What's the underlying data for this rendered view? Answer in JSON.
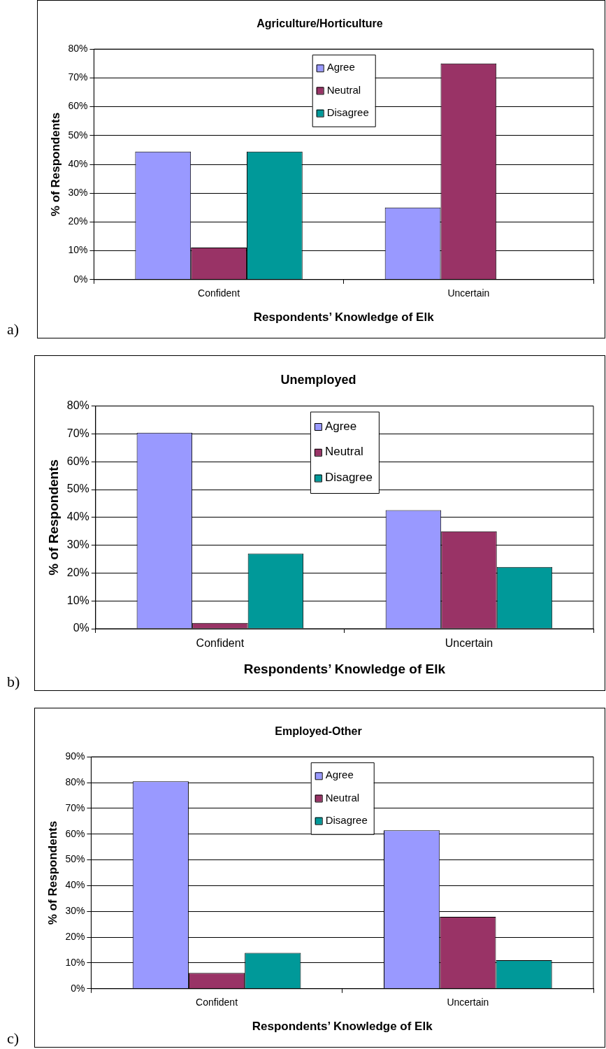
{
  "chart_data": [
    {
      "type": "bar",
      "title": "Agriculture/Horticulture",
      "xlabel": "Respondents’ Knowledge of Elk",
      "ylabel": "% of Respondents",
      "annotations": [
        "a)"
      ],
      "categories": [
        "Confident",
        "Uncertain"
      ],
      "series": [
        {
          "name": "Agree",
          "color": "#9999ff",
          "values": [
            44.4,
            25
          ]
        },
        {
          "name": "Neutral",
          "color": "#993366",
          "values": [
            11.1,
            75
          ]
        },
        {
          "name": "Disagree",
          "color": "#009999",
          "values": [
            44.4,
            0
          ]
        }
      ],
      "ylim": [
        0,
        80
      ],
      "yticks": [
        {
          "value": 0,
          "label": "0%"
        },
        {
          "value": 10,
          "label": "10%"
        },
        {
          "value": 20,
          "label": "20%"
        },
        {
          "value": 30,
          "label": "30%"
        },
        {
          "value": 40,
          "label": "40%"
        },
        {
          "value": 50,
          "label": "50%"
        },
        {
          "value": 60,
          "label": "60%"
        },
        {
          "value": 70,
          "label": "70%"
        },
        {
          "value": 80,
          "label": "80%"
        }
      ],
      "grid": "y",
      "legend": "top"
    },
    {
      "type": "bar",
      "title": "Unemployed",
      "xlabel": "Respondents’ Knowledge of Elk",
      "ylabel": "% of Respondents",
      "annotations": [
        "b)"
      ],
      "categories": [
        "Confident",
        "Uncertain"
      ],
      "series": [
        {
          "name": "Agree",
          "color": "#9999ff",
          "values": [
            70.4,
            42.6
          ]
        },
        {
          "name": "Neutral",
          "color": "#993366",
          "values": [
            2.1,
            35
          ]
        },
        {
          "name": "Disagree",
          "color": "#009999",
          "values": [
            27,
            22.2
          ]
        }
      ],
      "ylim": [
        0,
        80
      ],
      "yticks": [
        {
          "value": 0,
          "label": "0%"
        },
        {
          "value": 10,
          "label": "10%"
        },
        {
          "value": 20,
          "label": "20%"
        },
        {
          "value": 30,
          "label": "30%"
        },
        {
          "value": 40,
          "label": "40%"
        },
        {
          "value": 50,
          "label": "50%"
        },
        {
          "value": 60,
          "label": "60%"
        },
        {
          "value": 70,
          "label": "70%"
        },
        {
          "value": 80,
          "label": "80%"
        }
      ],
      "grid": "y",
      "legend": "top"
    },
    {
      "type": "bar",
      "title": "Employed-Other",
      "xlabel": "Respondents’ Knowledge of Elk",
      "ylabel": "% of Respondents",
      "annotations": [
        "c)"
      ],
      "categories": [
        "Confident",
        "Uncertain"
      ],
      "series": [
        {
          "name": "Agree",
          "color": "#9999ff",
          "values": [
            80.5,
            61.5
          ]
        },
        {
          "name": "Neutral",
          "color": "#993366",
          "values": [
            6.1,
            27.9
          ]
        },
        {
          "name": "Disagree",
          "color": "#009999",
          "values": [
            13.9,
            11.1
          ]
        }
      ],
      "ylim": [
        0,
        90
      ],
      "yticks": [
        {
          "value": 0,
          "label": "0%"
        },
        {
          "value": 10,
          "label": "10%"
        },
        {
          "value": 20,
          "label": "20%"
        },
        {
          "value": 30,
          "label": "30%"
        },
        {
          "value": 40,
          "label": "40%"
        },
        {
          "value": 50,
          "label": "50%"
        },
        {
          "value": 60,
          "label": "60%"
        },
        {
          "value": 70,
          "label": "70%"
        },
        {
          "value": 80,
          "label": "80%"
        },
        {
          "value": 90,
          "label": "90%"
        }
      ],
      "grid": "y",
      "legend": "top"
    }
  ]
}
